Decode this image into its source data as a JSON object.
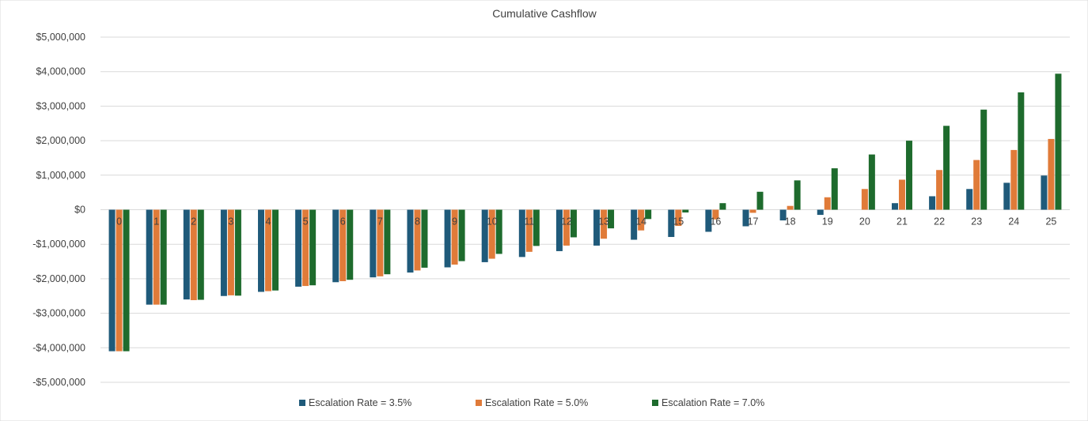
{
  "chart_data": {
    "type": "bar",
    "title": "Cumulative Cashflow",
    "xlabel": "",
    "ylabel": "",
    "ylim": [
      -5000000,
      5000000
    ],
    "yticks": [
      5000000,
      4000000,
      3000000,
      2000000,
      1000000,
      0,
      -1000000,
      -2000000,
      -3000000,
      -4000000,
      -5000000
    ],
    "ytick_labels": [
      "$5,000,000",
      "$4,000,000",
      "$3,000,000",
      "$2,000,000",
      "$1,000,000",
      "$0",
      "-$1,000,000",
      "-$2,000,000",
      "-$3,000,000",
      "-$4,000,000",
      "-$5,000,000"
    ],
    "grid": true,
    "legend_position": "bottom",
    "categories": [
      "0",
      "1",
      "2",
      "3",
      "4",
      "5",
      "6",
      "7",
      "8",
      "9",
      "10",
      "11",
      "12",
      "13",
      "14",
      "15",
      "16",
      "17",
      "18",
      "19",
      "20",
      "21",
      "22",
      "23",
      "24",
      "25"
    ],
    "series": [
      {
        "name": "Escalation Rate = 3.5%",
        "color": "#1f5a7a",
        "values": [
          -4100000,
          -2750000,
          -2600000,
          -2500000,
          -2380000,
          -2230000,
          -2100000,
          -1960000,
          -1820000,
          -1670000,
          -1520000,
          -1370000,
          -1200000,
          -1040000,
          -870000,
          -790000,
          -640000,
          -480000,
          -310000,
          -150000,
          0,
          190000,
          390000,
          600000,
          780000,
          990000
        ]
      },
      {
        "name": "Escalation Rate = 5.0%",
        "color": "#e07b39",
        "values": [
          -4100000,
          -2750000,
          -2620000,
          -2480000,
          -2360000,
          -2210000,
          -2070000,
          -1930000,
          -1760000,
          -1590000,
          -1420000,
          -1220000,
          -1040000,
          -840000,
          -600000,
          -470000,
          -280000,
          -90000,
          110000,
          360000,
          600000,
          870000,
          1150000,
          1440000,
          1730000,
          2050000
        ]
      },
      {
        "name": "Escalation Rate = 7.0%",
        "color": "#1e6b2d",
        "values": [
          -4100000,
          -2750000,
          -2610000,
          -2490000,
          -2340000,
          -2190000,
          -2030000,
          -1870000,
          -1680000,
          -1490000,
          -1280000,
          -1050000,
          -800000,
          -540000,
          -270000,
          -80000,
          190000,
          520000,
          850000,
          1200000,
          1600000,
          2000000,
          2430000,
          2900000,
          3400000,
          3940000
        ]
      }
    ]
  }
}
